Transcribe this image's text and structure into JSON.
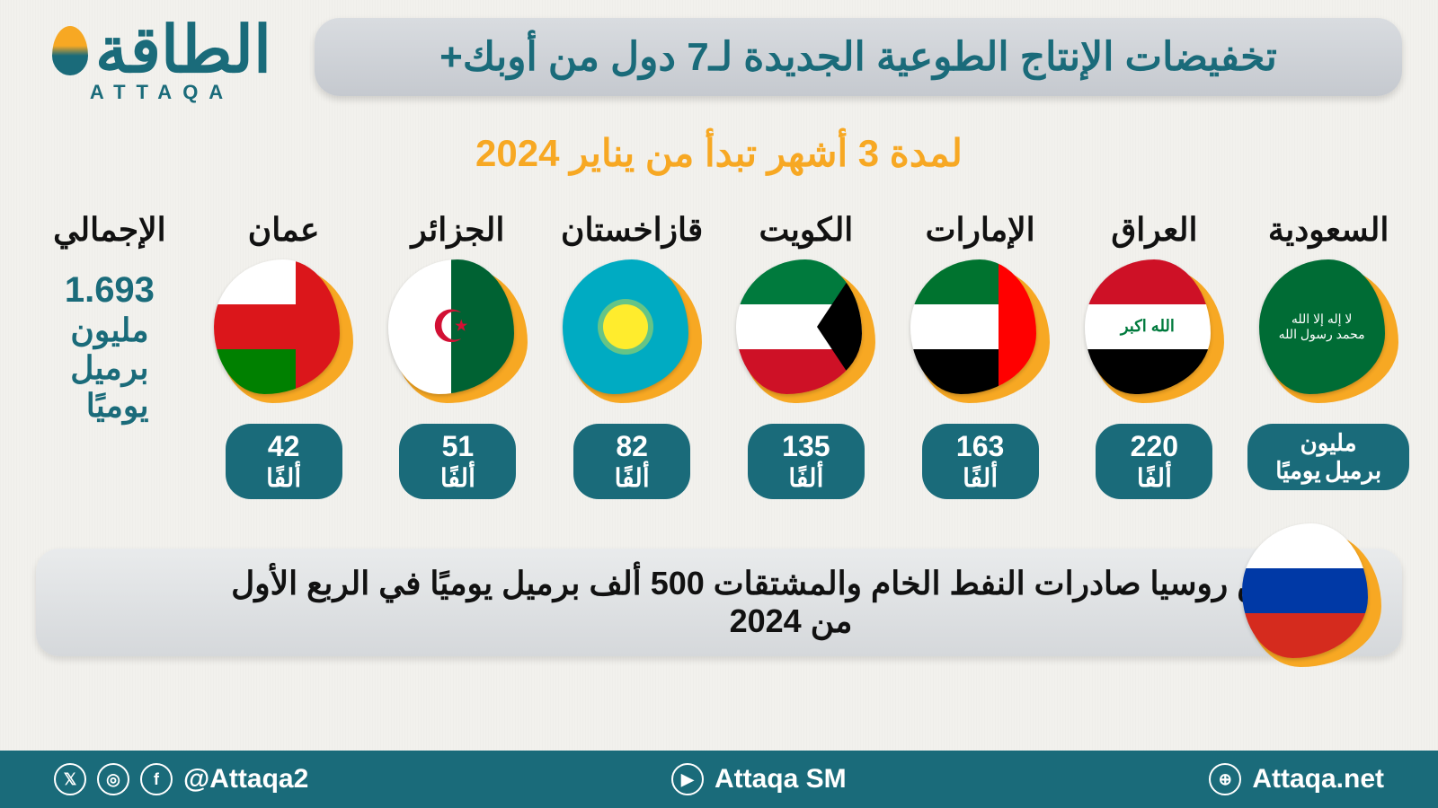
{
  "logo": {
    "main": "الطاقة",
    "sub": "ATTAQA"
  },
  "title": "تخفيضات الإنتاج الطوعية الجديدة لـ7 دول من أوبك+",
  "subtitle": "لمدة 3 أشهر تبدأ من يناير 2024",
  "colors": {
    "primary": "#1a6b7a",
    "accent": "#f7a823",
    "background": "#f2f1ed",
    "pill_text": "#ffffff",
    "country_name": "#111111",
    "title_bar_bg_top": "#d9dce0",
    "title_bar_bg_bottom": "#c5c9cf"
  },
  "typography": {
    "title_fontsize": 44,
    "subtitle_fontsize": 42,
    "country_name_fontsize": 36,
    "pill_value_fontsize": 32,
    "footer_fontsize": 30
  },
  "countries": [
    {
      "name": "السعودية",
      "value_line1": "مليون برميل",
      "value_line2": "يوميًا",
      "flag": "sa"
    },
    {
      "name": "العراق",
      "value": "220",
      "unit": "ألفًا",
      "flag": "iq"
    },
    {
      "name": "الإمارات",
      "value": "163",
      "unit": "ألفًا",
      "flag": "ae"
    },
    {
      "name": "الكويت",
      "value": "135",
      "unit": "ألفًا",
      "flag": "kw"
    },
    {
      "name": "قازاخستان",
      "value": "82",
      "unit": "ألفًا",
      "flag": "kz"
    },
    {
      "name": "الجزائر",
      "value": "51",
      "unit": "ألفًا",
      "flag": "dz"
    },
    {
      "name": "عمان",
      "value": "42",
      "unit": "ألفًا",
      "flag": "om"
    }
  ],
  "total": {
    "label": "الإجمالي",
    "value": "1.693",
    "line1": "مليون",
    "line2": "برميل",
    "line3": "يوميًا"
  },
  "russia": {
    "text": "ستخفض روسيا صادرات النفط الخام والمشتقات 500 ألف برميل يوميًا في الربع الأول من 2024",
    "flag": "ru"
  },
  "footer": {
    "handle": "@Attaqa2",
    "youtube": "Attaqa SM",
    "website": "Attaqa.net"
  }
}
